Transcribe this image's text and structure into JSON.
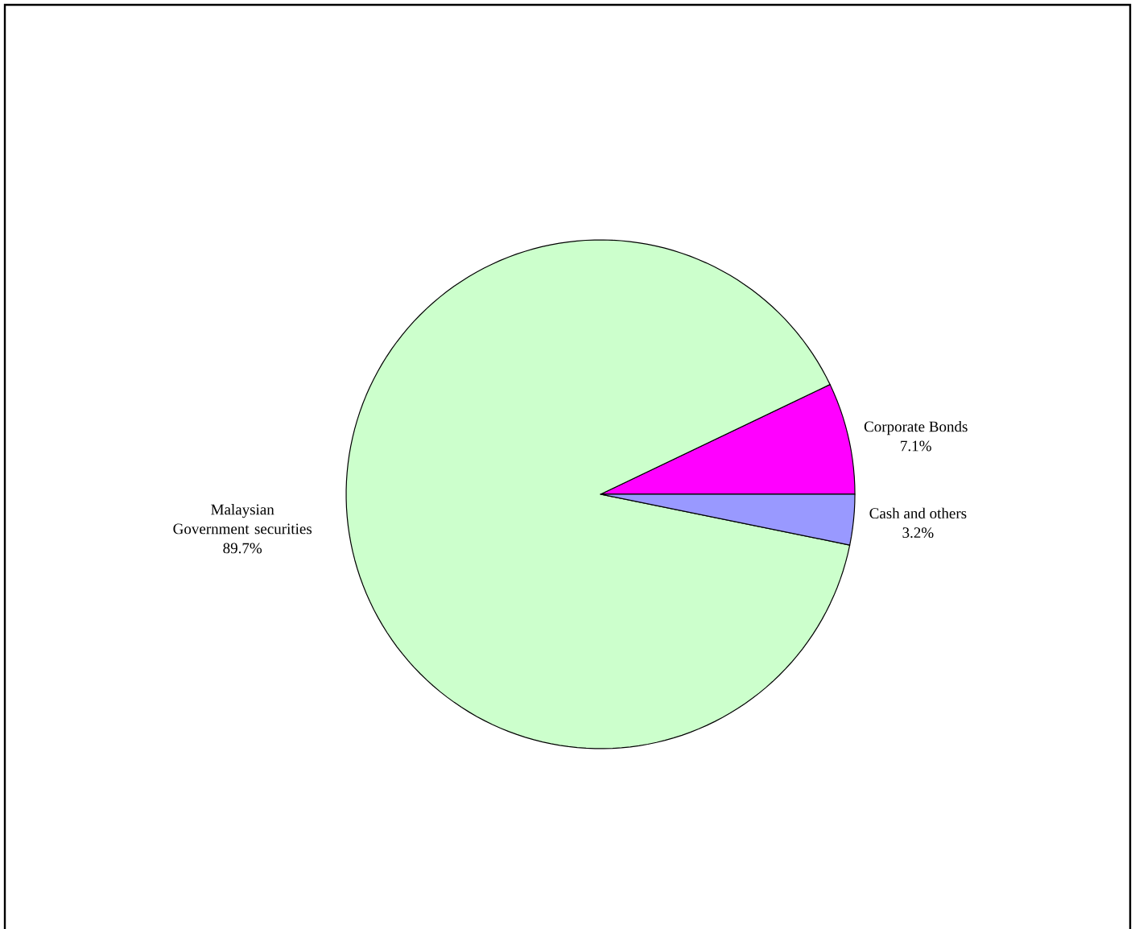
{
  "chart_data": {
    "type": "pie",
    "categories": [
      "Corporate Bonds",
      "Malaysian Government securities",
      "Cash and others"
    ],
    "values": [
      7.1,
      89.7,
      3.2
    ],
    "value_labels": [
      "7.1%",
      "89.7%",
      "3.2%"
    ],
    "colors": [
      "#ff00ff",
      "#ccffcc",
      "#9999ff"
    ]
  }
}
